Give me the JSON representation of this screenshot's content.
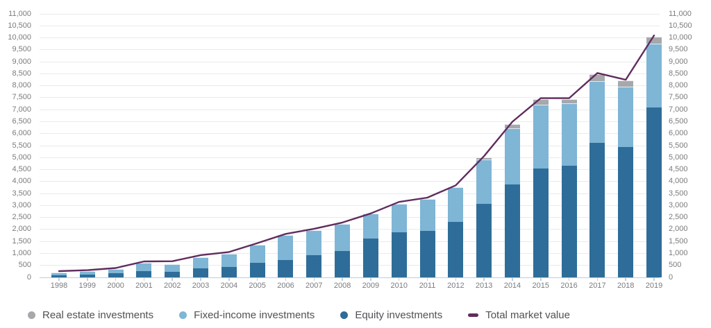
{
  "chart_data": {
    "type": "bar",
    "stacked": true,
    "title": "",
    "xlabel": "",
    "ylabel": "",
    "ylim": [
      0,
      11000
    ],
    "ytick_step": 500,
    "grid": true,
    "legend_position": "bottom",
    "categories": [
      "1998",
      "1999",
      "2000",
      "2001",
      "2002",
      "2003",
      "2004",
      "2005",
      "2006",
      "2007",
      "2008",
      "2009",
      "2010",
      "2011",
      "2012",
      "2013",
      "2014",
      "2015",
      "2016",
      "2017",
      "2018",
      "2019"
    ],
    "series": [
      {
        "name": "Equity investments",
        "kind": "bar",
        "stack_order": 0,
        "color": "#2e6d99",
        "values": [
          90,
          125,
          185,
          260,
          230,
          365,
          425,
          620,
          715,
          915,
          1100,
          1620,
          1880,
          1940,
          2320,
          3070,
          3880,
          4550,
          4660,
          5620,
          5450,
          7100
        ]
      },
      {
        "name": "Fixed-income investments",
        "kind": "bar",
        "stack_order": 1,
        "color": "#7fb5d5",
        "values": [
          110,
          135,
          175,
          340,
          330,
          485,
          570,
          750,
          1040,
          1065,
          1130,
          1040,
          1190,
          1340,
          1440,
          1850,
          2345,
          2660,
          2600,
          2570,
          2510,
          2660
        ]
      },
      {
        "name": "Real estate investments",
        "kind": "bar",
        "stack_order": 2,
        "color": "#a6a8ab",
        "values": [
          0,
          0,
          0,
          0,
          0,
          0,
          0,
          0,
          0,
          0,
          0,
          0,
          0,
          0,
          0,
          80,
          175,
          230,
          180,
          290,
          260,
          290
        ]
      },
      {
        "name": "Total market value",
        "kind": "line",
        "color": "#602c5d",
        "values": [
          260,
          300,
          390,
          665,
          675,
          930,
          1060,
          1430,
          1815,
          2030,
          2290,
          2670,
          3150,
          3330,
          3840,
          5060,
          6500,
          7480,
          7480,
          8530,
          8250,
          10100
        ]
      }
    ],
    "legend": [
      {
        "label": "Real estate investments",
        "marker": "dot",
        "color": "#a6a8ab"
      },
      {
        "label": "Fixed-income investments",
        "marker": "dot",
        "color": "#7fb5d5"
      },
      {
        "label": "Equity investments",
        "marker": "dot",
        "color": "#2e6d99"
      },
      {
        "label": "Total market value",
        "marker": "dash",
        "color": "#602c5d"
      }
    ],
    "colors": {
      "gridline": "#e9eaec",
      "axis_line": "#b9cfe4",
      "axis_text": "#7a7b7e",
      "legend_text": "#505155"
    }
  }
}
